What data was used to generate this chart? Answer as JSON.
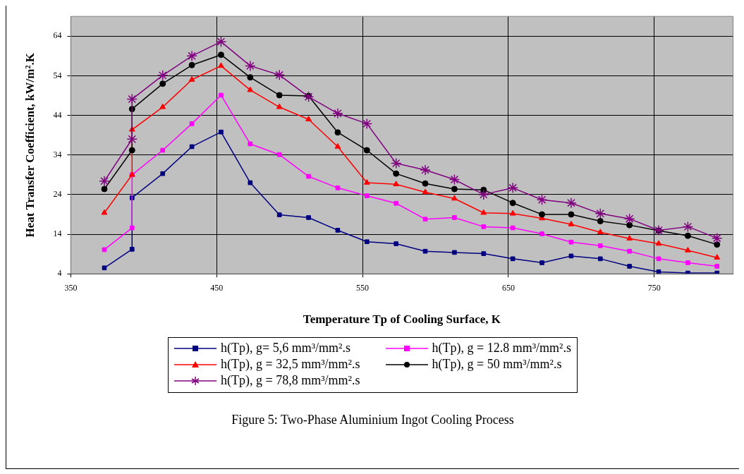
{
  "chart_data": {
    "type": "line",
    "xlabel": "Temperature Tp of Cooling Surface, K",
    "ylabel": "Heat Transfer Coefficient, kW/m².K",
    "xlim": [
      350,
      804
    ],
    "xticks": [
      350,
      450,
      550,
      650,
      750
    ],
    "ylim": [
      4,
      69
    ],
    "yticks": [
      4,
      14,
      24,
      34,
      44,
      54,
      64
    ],
    "grid": true,
    "legend": "bottom",
    "annotations": [
      "Figure 5:  Two-Phase Aluminium Ingot Cooling Process"
    ],
    "series": [
      {
        "name": "h(Tp), g= 5,6 mm³/mm².s",
        "color": "#000080",
        "marker": "square",
        "x": [
          373,
          392,
          392,
          413,
          433,
          453,
          473,
          493,
          513,
          533,
          553,
          573,
          593,
          613,
          633,
          653,
          673,
          693,
          713,
          733,
          753,
          773,
          793
        ],
        "values": [
          5.5,
          10.2,
          23.2,
          29.3,
          36.1,
          39.8,
          27.0,
          18.9,
          18.2,
          15.0,
          12.1,
          11.6,
          9.7,
          9.4,
          9.1,
          7.8,
          6.8,
          8.5,
          7.8,
          5.9,
          4.5,
          4.2,
          4.2
        ]
      },
      {
        "name": "h(Tp), g = 12.8 mm³/mm².s",
        "color": "#ff00ff",
        "marker": "square",
        "x": [
          373,
          392,
          392,
          413,
          433,
          453,
          473,
          493,
          513,
          533,
          553,
          573,
          593,
          613,
          633,
          653,
          673,
          693,
          713,
          733,
          753,
          773,
          793
        ],
        "values": [
          10.1,
          15.6,
          29.0,
          35.2,
          41.9,
          49.1,
          36.8,
          34.1,
          28.6,
          25.7,
          23.7,
          21.8,
          17.8,
          18.2,
          15.9,
          15.6,
          14.1,
          12.0,
          11.1,
          9.7,
          7.8,
          6.8,
          5.9
        ]
      },
      {
        "name": "h(Tp), g = 32,5 mm³/mm².s",
        "color": "#ff0000",
        "marker": "triangle",
        "x": [
          373,
          392,
          392,
          413,
          433,
          453,
          473,
          493,
          513,
          533,
          553,
          573,
          593,
          613,
          633,
          653,
          673,
          693,
          713,
          733,
          753,
          773,
          793
        ],
        "values": [
          19.4,
          29.0,
          40.4,
          46.1,
          53.0,
          56.5,
          50.4,
          46.1,
          43.0,
          36.1,
          27.0,
          26.6,
          24.6,
          23.0,
          19.4,
          19.2,
          18.0,
          16.5,
          14.5,
          12.9,
          11.6,
          9.9,
          8.1
        ]
      },
      {
        "name": "h(Tp), g = 50 mm³/mm².s",
        "color": "#000000",
        "marker": "circle",
        "x": [
          373,
          392,
          392,
          413,
          433,
          453,
          473,
          493,
          513,
          533,
          553,
          573,
          593,
          613,
          633,
          653,
          673,
          693,
          713,
          733,
          753,
          773,
          793
        ],
        "values": [
          25.4,
          35.2,
          45.6,
          52.0,
          56.7,
          59.3,
          53.6,
          49.1,
          48.9,
          39.7,
          35.2,
          29.3,
          26.8,
          25.4,
          25.2,
          21.9,
          19.0,
          19.0,
          17.3,
          16.3,
          14.9,
          13.6,
          11.4
        ]
      },
      {
        "name": "h(Tp), g = 78,8 mm³/mm².s",
        "color": "#800080",
        "marker": "cross",
        "x": [
          373,
          392,
          392,
          413,
          433,
          453,
          473,
          493,
          513,
          533,
          553,
          573,
          593,
          613,
          633,
          653,
          673,
          693,
          713,
          733,
          753,
          773,
          793
        ],
        "values": [
          27.4,
          38.0,
          48.1,
          54.1,
          59.0,
          62.6,
          56.5,
          54.2,
          48.7,
          44.5,
          41.9,
          31.9,
          30.2,
          27.8,
          24.0,
          25.7,
          22.7,
          21.9,
          19.2,
          17.9,
          15.0,
          15.9,
          13.0
        ]
      }
    ]
  }
}
